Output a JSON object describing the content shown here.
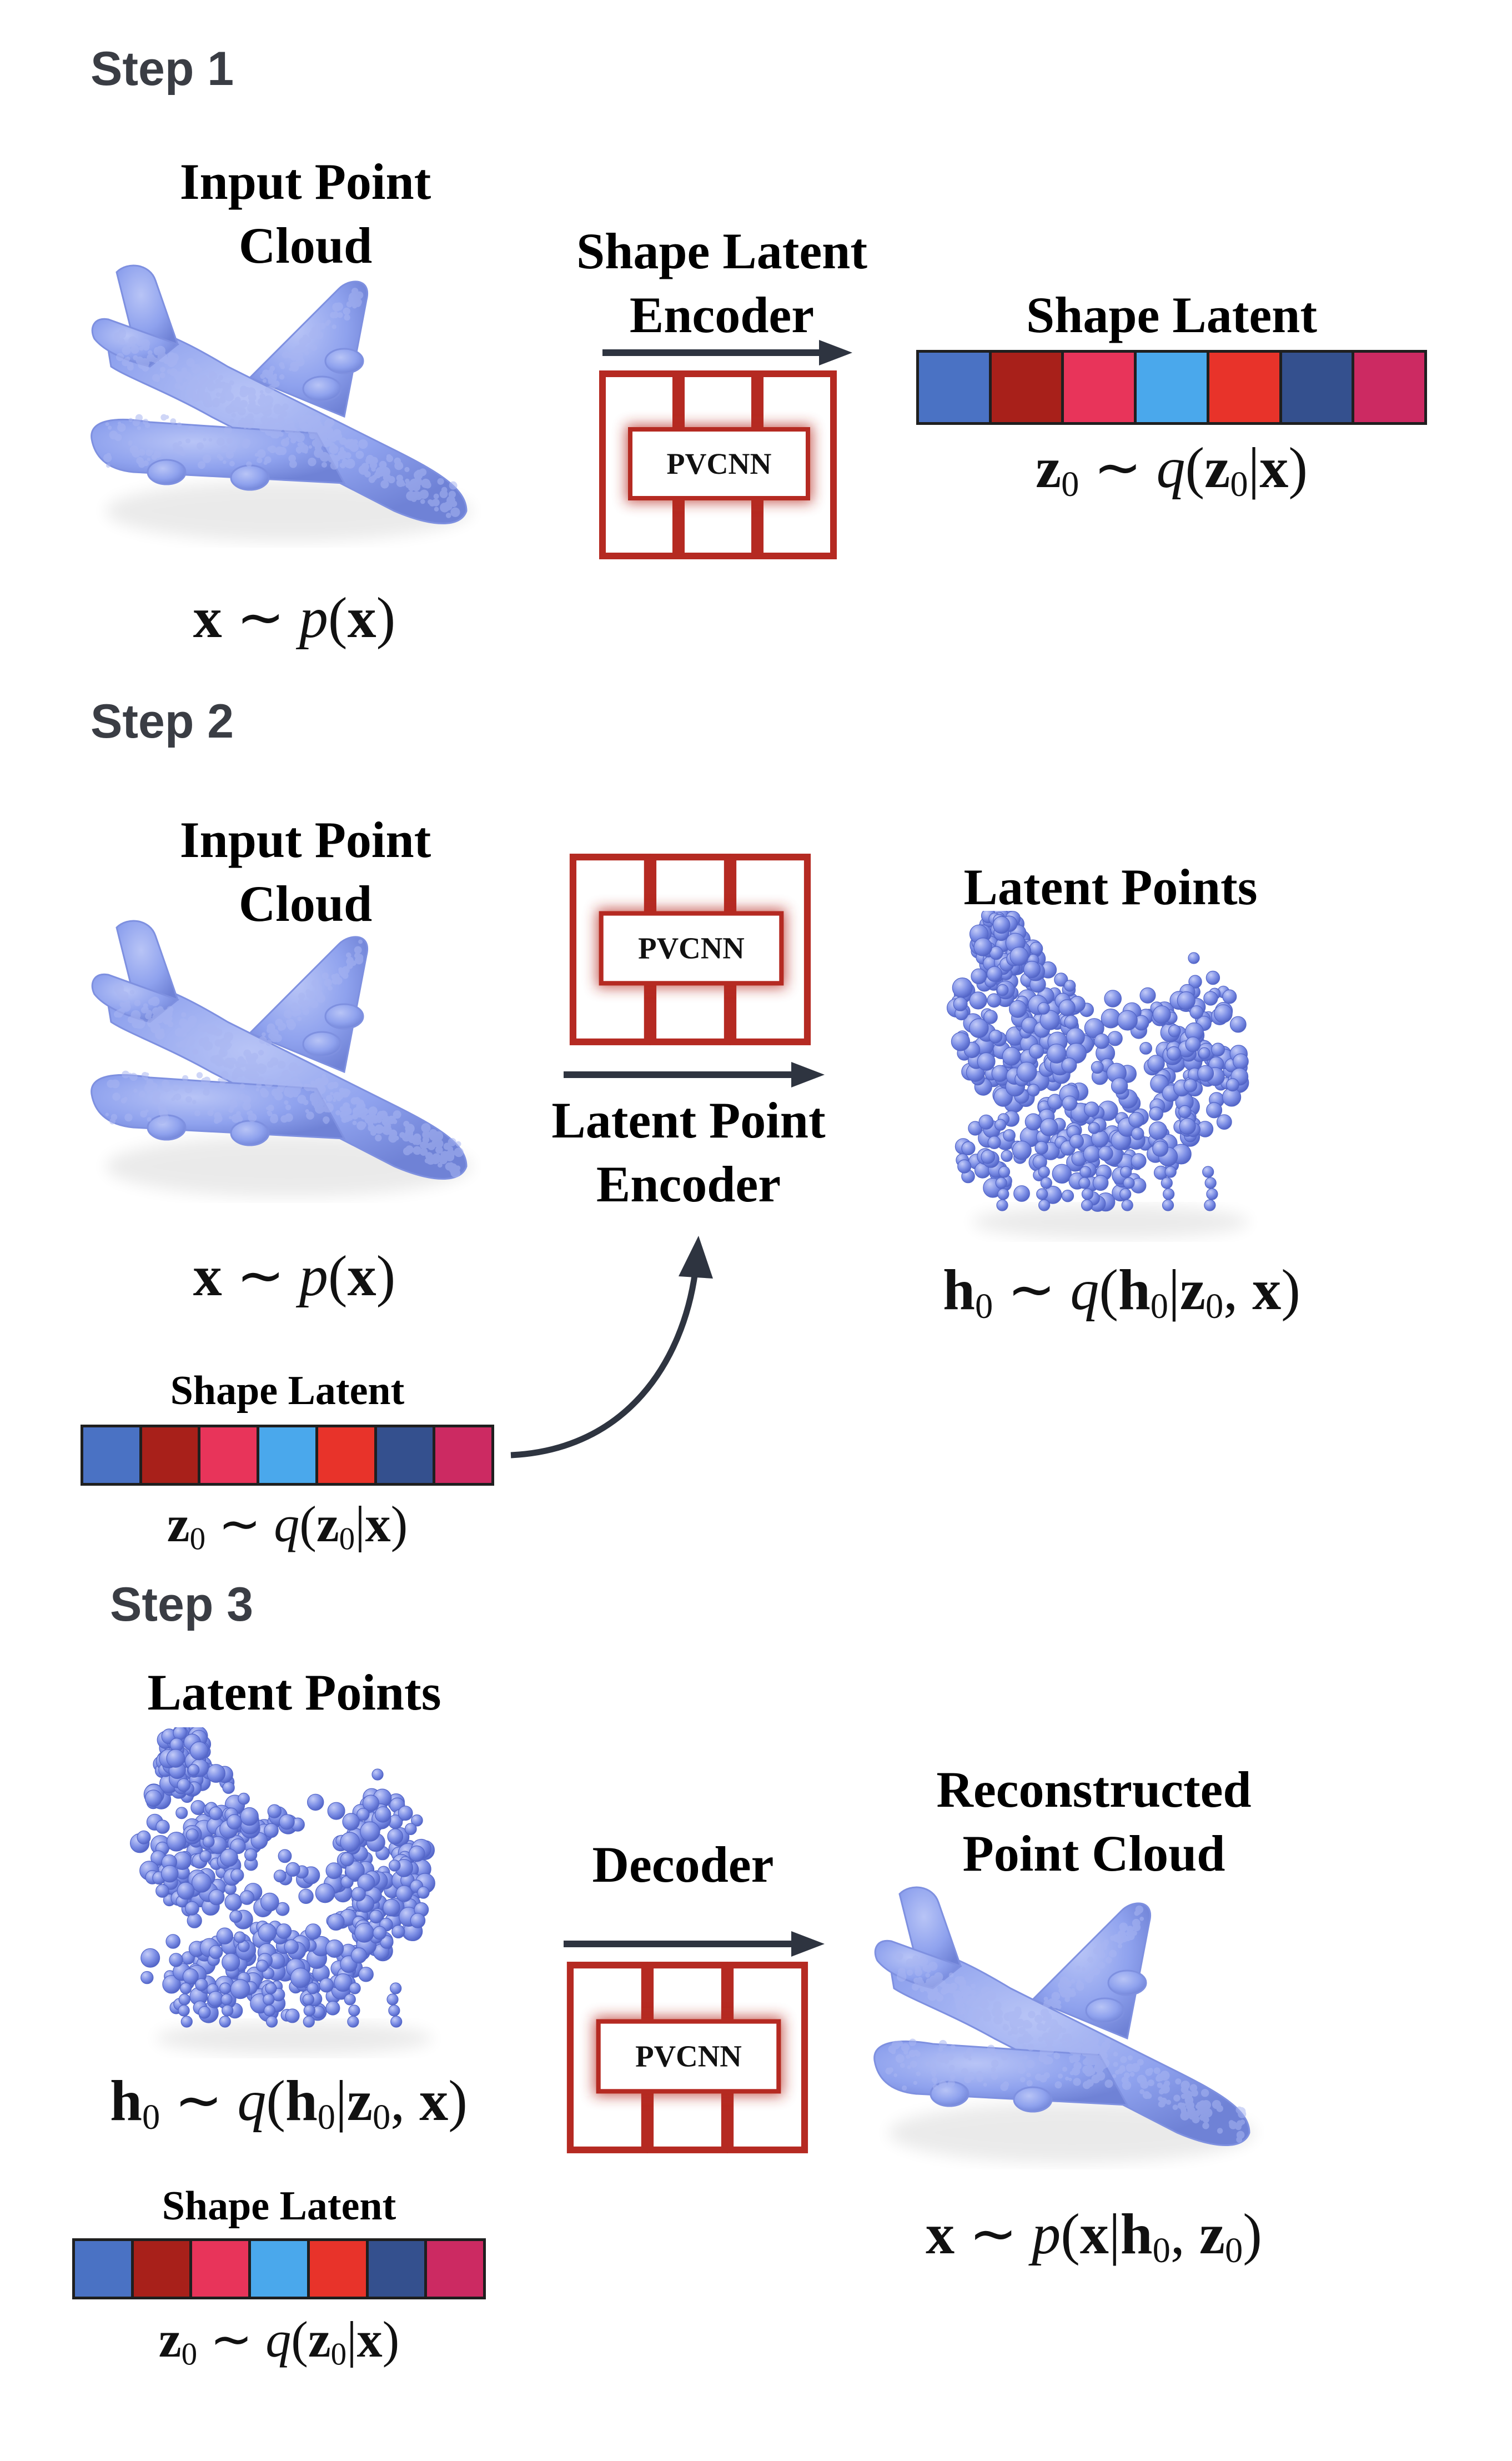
{
  "steps": [
    {
      "label": "Step 1",
      "input_title": "Input Point\nCloud",
      "input_eq": "x ~ p(x)",
      "encoder_title": "Shape Latent\nEncoder",
      "network": "PVCNN",
      "output_title": "Shape Latent",
      "output_eq": "z0 ~ q(z0|x)"
    },
    {
      "label": "Step 2",
      "input_title": "Input Point\nCloud",
      "input_eq": "x ~ p(x)",
      "encoder_title": "Latent Point\nEncoder",
      "network": "PVCNN",
      "output_title": "Latent Points",
      "output_eq": "h0 ~ q(h0|z0, x)",
      "condition_title": "Shape Latent",
      "condition_eq": "z0 ~ q(z0|x)"
    },
    {
      "label": "Step 3",
      "input_title": "Latent Points",
      "input_eq": "h0 ~ q(h0|z0, x)",
      "encoder_title": "Decoder",
      "network": "PVCNN",
      "output_title": "Reconstructed\nPoint Cloud",
      "output_eq": "x ~ p(x|h0, z0)",
      "condition_title": "Shape Latent",
      "condition_eq": "z0 ~ q(z0|x)"
    }
  ],
  "shape_latent_colors": [
    "#4a72c4",
    "#a8201a",
    "#e8345a",
    "#4aa8ec",
    "#e8332a",
    "#34508e",
    "#cc2a62"
  ],
  "colors": {
    "point_cloud": "#8fa2ee",
    "network_red": "#b52a22",
    "arrow": "#2e3440"
  }
}
